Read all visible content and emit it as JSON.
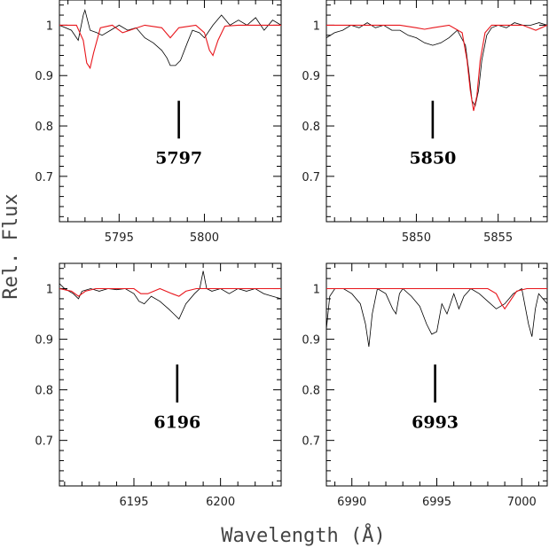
{
  "chart_data": {
    "type": "line",
    "ylabel": "Rel. Flux",
    "xlabel": "Wavelength (Å)",
    "colors": {
      "observed": "#000000",
      "model": "#e8161c"
    },
    "panels": [
      {
        "label": "5797",
        "marker_x": 5798.5,
        "xlim": [
          5791.5,
          5804.5
        ],
        "ylim": [
          0.61,
          1.05
        ],
        "xticks": [
          5795,
          5800
        ],
        "yticks": [
          0.7,
          0.8,
          0.9,
          1
        ],
        "marker_y": [
          0.775,
          0.85
        ],
        "label_y": 0.725,
        "observed": {
          "x": [
            5791.5,
            5792.2,
            5792.6,
            5792.9,
            5793.0,
            5793.3,
            5793.7,
            5794.0,
            5794.5,
            5795.0,
            5795.5,
            5796.0,
            5796.5,
            5797.0,
            5797.5,
            5797.8,
            5798.0,
            5798.3,
            5798.6,
            5799.0,
            5799.3,
            5799.7,
            5800.0,
            5800.5,
            5801.0,
            5801.5,
            5802.0,
            5802.5,
            5803.0,
            5803.5,
            5804.0,
            5804.5
          ],
          "y": [
            1.0,
            0.99,
            0.97,
            1.02,
            1.03,
            0.99,
            0.985,
            0.98,
            0.99,
            1.0,
            0.99,
            0.995,
            0.975,
            0.965,
            0.95,
            0.935,
            0.92,
            0.92,
            0.93,
            0.965,
            0.99,
            0.985,
            0.975,
            1.0,
            1.02,
            1.0,
            1.01,
            1.0,
            1.015,
            0.99,
            1.01,
            1.0
          ]
        },
        "model": {
          "x": [
            5791.5,
            5792.5,
            5792.9,
            5793.1,
            5793.3,
            5793.5,
            5793.9,
            5794.6,
            5795.2,
            5796.5,
            5797.5,
            5798.0,
            5798.5,
            5799.5,
            5800.0,
            5800.3,
            5800.5,
            5800.8,
            5801.2,
            5802.0,
            5804.5
          ],
          "y": [
            1.0,
            1.0,
            0.97,
            0.925,
            0.915,
            0.945,
            0.995,
            1.0,
            0.985,
            1.0,
            0.995,
            0.975,
            0.995,
            1.0,
            0.985,
            0.95,
            0.94,
            0.97,
            0.998,
            1.0,
            1.0
          ]
        }
      },
      {
        "label": "5850",
        "marker_x": 5851.0,
        "xlim": [
          5844.5,
          5858.0
        ],
        "ylim": [
          0.61,
          1.05
        ],
        "xticks": [
          5850,
          5855
        ],
        "yticks": [
          0.7,
          0.8,
          0.9,
          1
        ],
        "marker_y": [
          0.775,
          0.85
        ],
        "label_y": 0.725,
        "observed": {
          "x": [
            5844.5,
            5845.0,
            5845.5,
            5846.0,
            5846.5,
            5847.0,
            5847.5,
            5848.0,
            5848.5,
            5849.0,
            5849.5,
            5850.0,
            5850.5,
            5851.0,
            5851.5,
            5852.0,
            5852.5,
            5853.0,
            5853.2,
            5853.4,
            5853.6,
            5853.8,
            5854.0,
            5854.3,
            5854.6,
            5855.0,
            5855.5,
            5856.0,
            5856.5,
            5857.0,
            5857.5,
            5858.0
          ],
          "y": [
            0.975,
            0.985,
            0.99,
            1.0,
            0.995,
            1.005,
            0.995,
            1.0,
            0.99,
            0.99,
            0.98,
            0.975,
            0.965,
            0.96,
            0.965,
            0.975,
            0.99,
            0.96,
            0.91,
            0.85,
            0.84,
            0.87,
            0.93,
            0.98,
            0.995,
            1.0,
            0.995,
            1.005,
            1.0,
            1.0,
            1.005,
            1.0
          ]
        },
        "model": {
          "x": [
            5844.5,
            5849.0,
            5850.0,
            5850.5,
            5851.0,
            5852.0,
            5852.8,
            5853.1,
            5853.3,
            5853.5,
            5853.7,
            5853.9,
            5854.2,
            5854.6,
            5855.0,
            5856.5,
            5857.3,
            5858.0
          ],
          "y": [
            1.0,
            1.0,
            0.995,
            0.992,
            0.995,
            1.0,
            0.985,
            0.93,
            0.87,
            0.83,
            0.86,
            0.93,
            0.985,
            1.0,
            1.0,
            1.0,
            0.99,
            1.0
          ]
        }
      },
      {
        "label": "6196",
        "marker_x": 6197.5,
        "xlim": [
          6190.7,
          6203.5
        ],
        "ylim": [
          0.61,
          1.05
        ],
        "xticks": [
          6195,
          6200
        ],
        "yticks": [
          0.7,
          0.8,
          0.9,
          1
        ],
        "marker_y": [
          0.775,
          0.85
        ],
        "label_y": 0.725,
        "observed": {
          "x": [
            6190.7,
            6191.0,
            6191.5,
            6191.8,
            6192.0,
            6192.5,
            6193.0,
            6193.5,
            6194.0,
            6194.5,
            6195.0,
            6195.3,
            6195.6,
            6196.0,
            6196.5,
            6197.0,
            6197.3,
            6197.6,
            6198.0,
            6198.5,
            6198.8,
            6199.0,
            6199.2,
            6199.5,
            6200.0,
            6200.5,
            6201.0,
            6201.5,
            6202.0,
            6202.5,
            6203.0,
            6203.5
          ],
          "y": [
            1.01,
            1.0,
            0.99,
            0.98,
            0.995,
            1.0,
            0.995,
            1.0,
            0.998,
            1.0,
            0.99,
            0.975,
            0.97,
            0.985,
            0.975,
            0.96,
            0.95,
            0.94,
            0.97,
            0.99,
            1.0,
            1.035,
            1.0,
            0.995,
            1.0,
            0.99,
            1.0,
            0.995,
            1.0,
            0.99,
            0.985,
            0.98
          ]
        },
        "model": {
          "x": [
            6190.7,
            6191.4,
            6191.8,
            6192.2,
            6192.8,
            6195.0,
            6195.4,
            6195.8,
            6196.5,
            6197.2,
            6197.6,
            6198.0,
            6198.6,
            6202.5,
            6203.5
          ],
          "y": [
            1.0,
            0.995,
            0.985,
            0.995,
            1.0,
            1.0,
            0.99,
            0.99,
            1.0,
            0.99,
            0.985,
            0.995,
            1.0,
            1.0,
            1.0
          ]
        }
      },
      {
        "label": "6993",
        "marker_x": 6994.9,
        "xlim": [
          6988.5,
          7001.5
        ],
        "ylim": [
          0.61,
          1.05
        ],
        "xticks": [
          6990,
          6995,
          7000
        ],
        "yticks": [
          0.7,
          0.8,
          0.9,
          1
        ],
        "marker_y": [
          0.775,
          0.85
        ],
        "label_y": 0.725,
        "observed": {
          "x": [
            6988.5,
            6988.7,
            6989.0,
            6989.5,
            6990.0,
            6990.5,
            6990.8,
            6991.0,
            6991.2,
            6991.5,
            6992.0,
            6992.4,
            6992.6,
            6992.8,
            6993.0,
            6993.5,
            6994.0,
            6994.4,
            6994.7,
            6995.0,
            6995.3,
            6995.6,
            6996.0,
            6996.3,
            6996.6,
            6997.0,
            6997.5,
            6998.0,
            6998.5,
            6999.0,
            6999.5,
            7000.0,
            7000.4,
            7000.6,
            7000.8,
            7001.0,
            7001.5
          ],
          "y": [
            0.92,
            0.985,
            1.0,
            1.0,
            0.99,
            0.97,
            0.93,
            0.885,
            0.95,
            1.0,
            0.99,
            0.96,
            0.95,
            0.99,
            1.0,
            0.985,
            0.965,
            0.93,
            0.91,
            0.915,
            0.97,
            0.95,
            0.99,
            0.96,
            0.985,
            1.0,
            0.99,
            0.975,
            0.96,
            0.97,
            0.99,
            1.0,
            0.93,
            0.905,
            0.96,
            0.99,
            0.97
          ]
        },
        "model": {
          "x": [
            6988.5,
            6998.0,
            6998.5,
            6998.8,
            6999.0,
            6999.3,
            6999.7,
            7000.3,
            7001.5
          ],
          "y": [
            1.0,
            1.0,
            0.99,
            0.97,
            0.96,
            0.975,
            0.995,
            1.0,
            1.0
          ]
        }
      }
    ]
  }
}
